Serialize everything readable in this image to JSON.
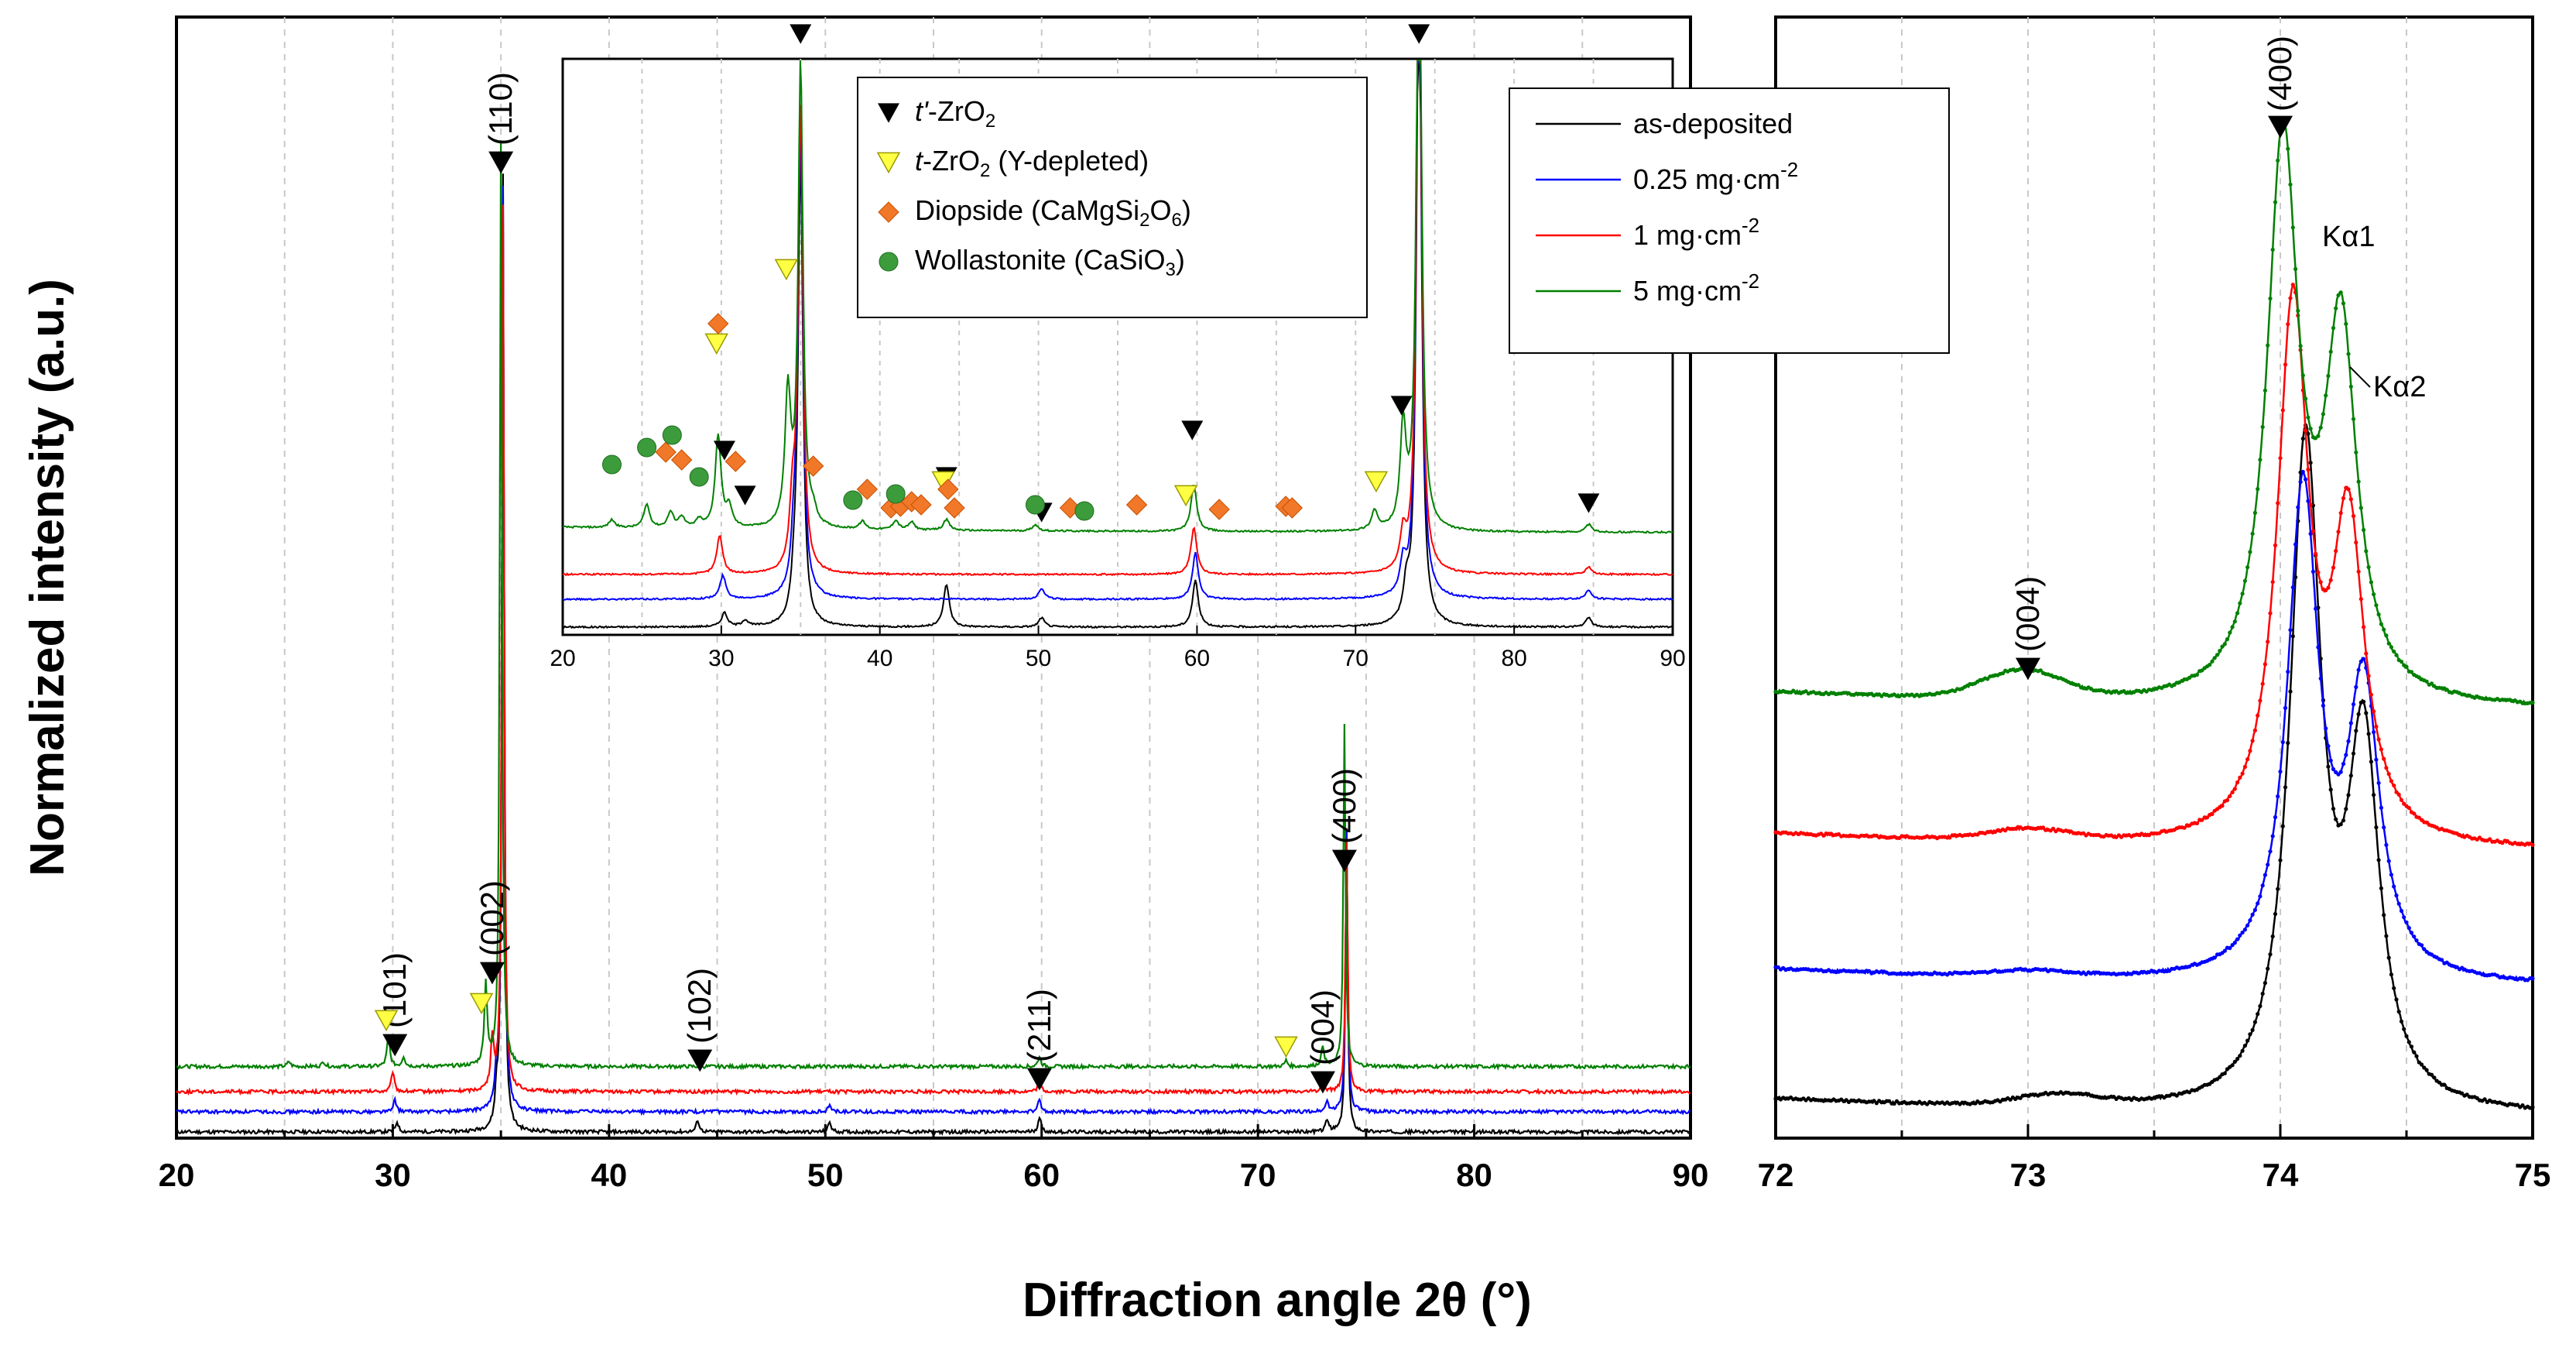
{
  "chart_data": [
    {
      "type": "line",
      "panel": "main",
      "title": "",
      "xlabel": "Diffraction angle 2θ (°)",
      "ylabel": "Normalized intensity (a.u.)",
      "xlim": [
        20,
        90
      ],
      "ylim": [
        -0.02,
        1.0
      ],
      "x_ticks": [
        20,
        30,
        40,
        50,
        60,
        70,
        80,
        90
      ],
      "grid": "vertical dashed",
      "series": [
        {
          "name": "as-deposited",
          "color": "#000000",
          "offset": 0.0,
          "peaks": [
            [
              30.2,
              0.01
            ],
            [
              34.8,
              0.03
            ],
            [
              35.1,
              0.95
            ],
            [
              44.1,
              0.012
            ],
            [
              50.2,
              0.01
            ],
            [
              59.9,
              0.015
            ],
            [
              73.2,
              0.012
            ],
            [
              74.1,
              0.3
            ]
          ]
        },
        {
          "name": "0.25 mg·cm-2",
          "color": "#0000ff",
          "offset": 0.02,
          "peaks": [
            [
              30.1,
              0.012
            ],
            [
              34.8,
              0.03
            ],
            [
              35.1,
              0.92
            ],
            [
              50.2,
              0.008
            ],
            [
              59.9,
              0.012
            ],
            [
              73.2,
              0.01
            ],
            [
              74.1,
              0.28
            ]
          ]
        },
        {
          "name": "1 mg·cm-2",
          "color": "#ff0000",
          "offset": 0.04,
          "peaks": [
            [
              30.0,
              0.02
            ],
            [
              34.6,
              0.05
            ],
            [
              35.1,
              0.88
            ],
            [
              59.9,
              0.012
            ],
            [
              73.0,
              0.012
            ],
            [
              74.1,
              0.25
            ]
          ]
        },
        {
          "name": "5 mg·cm-2",
          "color": "#008000",
          "offset": 0.065,
          "peaks": [
            [
              25.2,
              0.005
            ],
            [
              26.8,
              0.005
            ],
            [
              29.8,
              0.03
            ],
            [
              30.5,
              0.01
            ],
            [
              34.3,
              0.08
            ],
            [
              35.0,
              0.92
            ],
            [
              59.9,
              0.01
            ],
            [
              71.3,
              0.006
            ],
            [
              73.0,
              0.02
            ],
            [
              74.0,
              0.34
            ]
          ]
        }
      ],
      "annotations": [
        {
          "label": "(110)",
          "x": 35.0,
          "marker": "t'-ZrO2"
        },
        {
          "label": "(101)",
          "x": 30.1,
          "marker": "t'-ZrO2"
        },
        {
          "label": "(002)",
          "x": 34.6,
          "marker": "t'-ZrO2"
        },
        {
          "label": "(102)",
          "x": 44.2,
          "marker": "t'-ZrO2"
        },
        {
          "label": "(211)",
          "x": 59.9,
          "marker": "t'-ZrO2"
        },
        {
          "label": "(004)",
          "x": 73.0,
          "marker": "t'-ZrO2"
        },
        {
          "label": "(400)",
          "x": 74.0,
          "marker": "t'-ZrO2"
        }
      ],
      "y_depleted_markers": [
        29.7,
        34.1,
        71.3
      ]
    },
    {
      "type": "line",
      "panel": "inset",
      "xlim": [
        20,
        90
      ],
      "x_ticks": [
        20,
        30,
        40,
        50,
        60,
        70,
        80,
        90
      ],
      "legend": [
        {
          "label_italic": "t'",
          "label": "-ZrO",
          "sub": "2",
          "rest": "",
          "marker": "black-triangle-down"
        },
        {
          "label_italic": "t",
          "label": "-ZrO",
          "sub": "2",
          "rest": " (Y-depleted)",
          "marker": "yellow-triangle-down"
        },
        {
          "label_italic": "",
          "label": "Diopside (CaMgSi",
          "sub": "2",
          "rest": "O",
          "sub2": "6",
          "rest2": ")",
          "marker": "orange-diamond"
        },
        {
          "label_italic": "",
          "label": "Wollastonite (CaSiO",
          "sub": "3",
          "rest": ")",
          "marker": "green-circle"
        }
      ],
      "t_prime_markers": [
        30.2,
        31.5,
        35.0,
        44.2,
        50.2,
        59.7,
        72.9,
        74.0,
        84.7
      ],
      "t_depleted_markers": [
        29.7,
        34.1,
        44.0,
        59.3,
        71.3
      ],
      "diopside_markers": [
        26.5,
        27.5,
        29.8,
        30.9,
        35.8,
        39.2,
        40.7,
        41.3,
        42.0,
        42.6,
        44.3,
        44.7,
        56.2,
        61.4,
        65.6,
        66.0,
        52.0
      ],
      "wollastonite_markers": [
        23.1,
        25.3,
        26.9,
        28.6,
        38.3,
        41.0,
        49.8,
        52.9
      ]
    },
    {
      "type": "line",
      "panel": "detail",
      "xlim": [
        72,
        75
      ],
      "x_ticks": [
        72,
        73,
        74,
        75
      ],
      "legend": [
        {
          "name": "as-deposited",
          "text": "as-deposited",
          "unit": "",
          "sup": "",
          "color": "#000000"
        },
        {
          "name": "0.25 mg·cm-2",
          "text": "0.25 mg·cm",
          "unit": "",
          "sup": "-2",
          "color": "#0000ff"
        },
        {
          "name": "1 mg·cm-2",
          "text": "1 mg·cm",
          "unit": "",
          "sup": "-2",
          "color": "#ff0000"
        },
        {
          "name": "5 mg·cm-2",
          "text": "5 mg·cm",
          "unit": "",
          "sup": "-2",
          "color": "#008000"
        }
      ],
      "series": [
        {
          "name": "as-deposited",
          "color": "#000000",
          "baseline": 0.0,
          "ka1": [
            74.1,
            0.58
          ],
          "ka2": [
            74.33,
            0.31
          ],
          "hump": [
            73.12,
            0.01
          ]
        },
        {
          "name": "0.25 mg·cm-2",
          "color": "#0000ff",
          "baseline": 0.115,
          "ka1": [
            74.09,
            0.43
          ],
          "ka2": [
            74.33,
            0.25
          ],
          "hump": [
            73.0,
            0.005
          ]
        },
        {
          "name": "1 mg·cm-2",
          "color": "#ff0000",
          "baseline": 0.235,
          "ka1": [
            74.05,
            0.47
          ],
          "ka2": [
            74.27,
            0.27
          ],
          "hump": [
            73.0,
            0.01
          ]
        },
        {
          "name": "5 mg·cm-2",
          "color": "#008000",
          "baseline": 0.36,
          "ka1": [
            74.01,
            0.49
          ],
          "ka2": [
            74.24,
            0.32
          ],
          "hump": [
            72.98,
            0.025
          ]
        }
      ],
      "annotations": [
        {
          "label": "(400)",
          "x": 74.0
        },
        {
          "label": "(004)",
          "x": 73.0
        },
        {
          "label": "Kα1"
        },
        {
          "label": "Kα2"
        }
      ]
    }
  ]
}
